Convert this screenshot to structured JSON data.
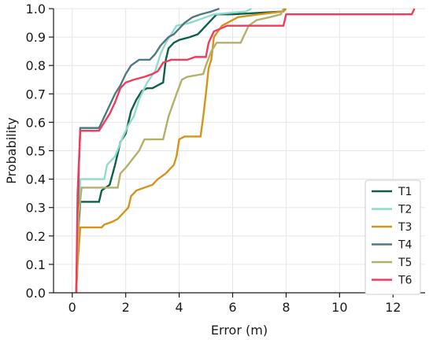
{
  "chart_data": {
    "type": "line",
    "title": "",
    "xlabel": "Error (m)",
    "ylabel": "Probability",
    "xlim": [
      -0.7,
      13.2
    ],
    "ylim": [
      0.0,
      1.0
    ],
    "xticks": [
      0,
      2,
      4,
      6,
      8,
      10,
      12
    ],
    "xtick_labels": [
      "0",
      "2",
      "4",
      "6",
      "8",
      "10",
      "12"
    ],
    "yticks": [
      0.0,
      0.1,
      0.2,
      0.3,
      0.4,
      0.5,
      0.6,
      0.7,
      0.8,
      0.9,
      1.0
    ],
    "ytick_labels": [
      "0.0",
      "0.1",
      "0.2",
      "0.3",
      "0.4",
      "0.5",
      "0.6",
      "0.7",
      "0.8",
      "0.9",
      "1.0"
    ],
    "grid": true,
    "legend_position": "bottom-right",
    "series": [
      {
        "name": "T1",
        "color": "#0d5e4a",
        "points": [
          [
            0.15,
            0
          ],
          [
            0.2,
            0.18
          ],
          [
            0.3,
            0.32
          ],
          [
            1.0,
            0.32
          ],
          [
            1.1,
            0.36
          ],
          [
            1.4,
            0.38
          ],
          [
            1.6,
            0.45
          ],
          [
            1.8,
            0.53
          ],
          [
            2.0,
            0.56
          ],
          [
            2.2,
            0.64
          ],
          [
            2.4,
            0.68
          ],
          [
            2.6,
            0.71
          ],
          [
            2.8,
            0.72
          ],
          [
            3.0,
            0.72
          ],
          [
            3.2,
            0.73
          ],
          [
            3.4,
            0.74
          ],
          [
            3.5,
            0.82
          ],
          [
            3.6,
            0.86
          ],
          [
            3.8,
            0.88
          ],
          [
            4.0,
            0.89
          ],
          [
            4.4,
            0.9
          ],
          [
            4.7,
            0.91
          ],
          [
            5.0,
            0.94
          ],
          [
            5.2,
            0.96
          ],
          [
            5.4,
            0.98
          ],
          [
            6.0,
            0.98
          ],
          [
            7.9,
            0.99
          ],
          [
            7.95,
            1.0
          ]
        ]
      },
      {
        "name": "T2",
        "color": "#8fdcca",
        "points": [
          [
            0.15,
            0
          ],
          [
            0.2,
            0.18
          ],
          [
            0.3,
            0.4
          ],
          [
            1.2,
            0.4
          ],
          [
            1.3,
            0.45
          ],
          [
            1.6,
            0.48
          ],
          [
            1.9,
            0.55
          ],
          [
            2.1,
            0.59
          ],
          [
            2.3,
            0.62
          ],
          [
            2.5,
            0.68
          ],
          [
            2.8,
            0.74
          ],
          [
            3.1,
            0.78
          ],
          [
            3.3,
            0.84
          ],
          [
            3.5,
            0.88
          ],
          [
            3.9,
            0.94
          ],
          [
            4.4,
            0.95
          ],
          [
            4.7,
            0.96
          ],
          [
            5.0,
            0.97
          ],
          [
            5.3,
            0.98
          ],
          [
            6.5,
            0.99
          ],
          [
            6.7,
            1.0
          ]
        ]
      },
      {
        "name": "T3",
        "color": "#d4941c",
        "points": [
          [
            0.15,
            0
          ],
          [
            0.2,
            0.1
          ],
          [
            0.3,
            0.23
          ],
          [
            1.1,
            0.23
          ],
          [
            1.2,
            0.24
          ],
          [
            1.5,
            0.25
          ],
          [
            1.7,
            0.26
          ],
          [
            1.9,
            0.28
          ],
          [
            2.1,
            0.3
          ],
          [
            2.2,
            0.34
          ],
          [
            2.4,
            0.36
          ],
          [
            2.7,
            0.37
          ],
          [
            3.0,
            0.38
          ],
          [
            3.2,
            0.4
          ],
          [
            3.5,
            0.42
          ],
          [
            3.8,
            0.45
          ],
          [
            3.9,
            0.48
          ],
          [
            4.0,
            0.54
          ],
          [
            4.2,
            0.55
          ],
          [
            4.8,
            0.55
          ],
          [
            4.9,
            0.62
          ],
          [
            5.0,
            0.7
          ],
          [
            5.1,
            0.79
          ],
          [
            5.2,
            0.82
          ],
          [
            5.3,
            0.9
          ],
          [
            5.6,
            0.94
          ],
          [
            6.0,
            0.96
          ],
          [
            6.2,
            0.97
          ],
          [
            7.0,
            0.98
          ],
          [
            7.9,
            0.99
          ],
          [
            8.0,
            1.0
          ]
        ]
      },
      {
        "name": "T4",
        "color": "#4f7882",
        "points": [
          [
            0.15,
            0
          ],
          [
            0.25,
            0.45
          ],
          [
            0.3,
            0.58
          ],
          [
            1.0,
            0.58
          ],
          [
            1.1,
            0.6
          ],
          [
            1.2,
            0.62
          ],
          [
            1.4,
            0.66
          ],
          [
            1.6,
            0.7
          ],
          [
            1.8,
            0.73
          ],
          [
            2.0,
            0.77
          ],
          [
            2.2,
            0.8
          ],
          [
            2.5,
            0.82
          ],
          [
            2.9,
            0.82
          ],
          [
            3.1,
            0.84
          ],
          [
            3.3,
            0.87
          ],
          [
            3.6,
            0.9
          ],
          [
            3.8,
            0.91
          ],
          [
            4.0,
            0.93
          ],
          [
            4.2,
            0.95
          ],
          [
            4.5,
            0.97
          ],
          [
            4.8,
            0.98
          ],
          [
            5.2,
            0.99
          ],
          [
            5.5,
            1.0
          ]
        ]
      },
      {
        "name": "T5",
        "color": "#b3b06a",
        "points": [
          [
            0.15,
            0
          ],
          [
            0.25,
            0.28
          ],
          [
            0.35,
            0.37
          ],
          [
            1.7,
            0.37
          ],
          [
            1.8,
            0.42
          ],
          [
            2.0,
            0.44
          ],
          [
            2.5,
            0.5
          ],
          [
            2.7,
            0.54
          ],
          [
            3.4,
            0.54
          ],
          [
            3.6,
            0.62
          ],
          [
            3.9,
            0.7
          ],
          [
            4.1,
            0.75
          ],
          [
            4.3,
            0.76
          ],
          [
            4.9,
            0.77
          ],
          [
            5.0,
            0.8
          ],
          [
            5.2,
            0.85
          ],
          [
            5.4,
            0.88
          ],
          [
            6.3,
            0.88
          ],
          [
            6.6,
            0.94
          ],
          [
            6.9,
            0.96
          ],
          [
            7.4,
            0.97
          ],
          [
            7.8,
            0.98
          ],
          [
            7.9,
            1.0
          ]
        ]
      },
      {
        "name": "T6",
        "color": "#f23a5b",
        "points": [
          [
            0.15,
            0
          ],
          [
            0.2,
            0.35
          ],
          [
            0.3,
            0.57
          ],
          [
            1.0,
            0.57
          ],
          [
            1.2,
            0.6
          ],
          [
            1.4,
            0.63
          ],
          [
            1.6,
            0.67
          ],
          [
            1.8,
            0.72
          ],
          [
            2.0,
            0.74
          ],
          [
            2.3,
            0.75
          ],
          [
            2.7,
            0.76
          ],
          [
            3.0,
            0.77
          ],
          [
            3.2,
            0.78
          ],
          [
            3.4,
            0.81
          ],
          [
            3.7,
            0.82
          ],
          [
            4.3,
            0.82
          ],
          [
            4.6,
            0.83
          ],
          [
            5.0,
            0.83
          ],
          [
            5.1,
            0.88
          ],
          [
            5.3,
            0.92
          ],
          [
            5.8,
            0.94
          ],
          [
            7.9,
            0.94
          ],
          [
            8.0,
            0.98
          ],
          [
            12.7,
            0.98
          ],
          [
            12.8,
            1.0
          ]
        ]
      }
    ]
  }
}
